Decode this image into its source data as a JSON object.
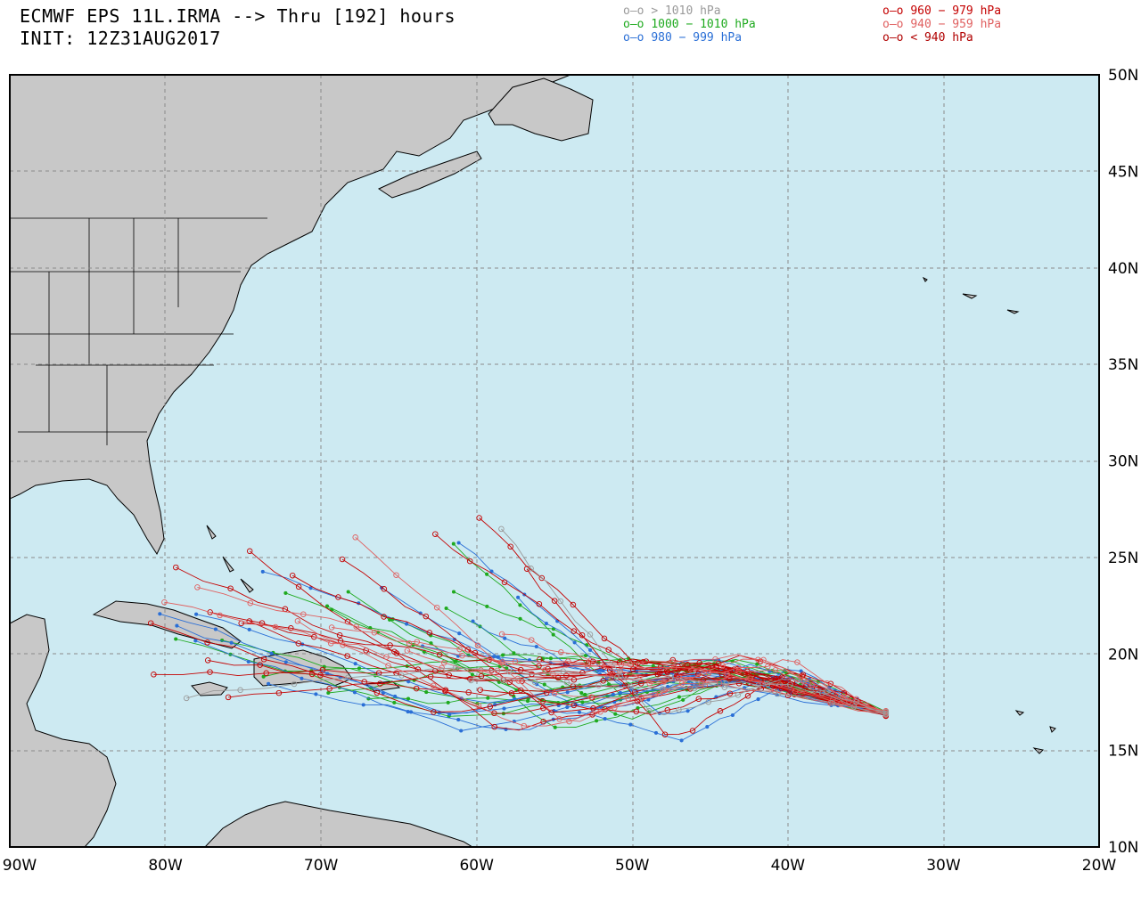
{
  "header": {
    "title": "ECMWF EPS 11L.IRMA --> Thru [192] hours",
    "init": "INIT: 12Z31AUG2017"
  },
  "legend": {
    "left": [
      {
        "marker": "o—o",
        "label": "> 1010 hPa",
        "color": "#9a9a9a"
      },
      {
        "marker": "o—o",
        "label": "1000 − 1010 hPa",
        "color": "#1faa1f"
      },
      {
        "marker": "o—o",
        "label": "980 − 999 hPa",
        "color": "#2a6fd6"
      }
    ],
    "right": [
      {
        "marker": "o—o",
        "label": "960 − 979 hPa",
        "color": "#c40000"
      },
      {
        "marker": "o—o",
        "label": "940 − 959 hPa",
        "color": "#e06060"
      },
      {
        "marker": "o—o",
        "label": "< 940 hPa",
        "color": "#b00000"
      }
    ]
  },
  "map": {
    "lon_range": [
      -90,
      -20
    ],
    "lat_range": [
      10,
      50
    ],
    "ocean_color": "#cdeaf2",
    "land_color": "#c8c8c8",
    "grid": "dashed",
    "lon_labels": [
      "90W",
      "80W",
      "70W",
      "60W",
      "50W",
      "40W",
      "30W",
      "20W"
    ],
    "lat_labels": [
      "10N",
      "15N",
      "20N",
      "25N",
      "30N",
      "35N",
      "40N",
      "45N",
      "50N"
    ]
  }
}
